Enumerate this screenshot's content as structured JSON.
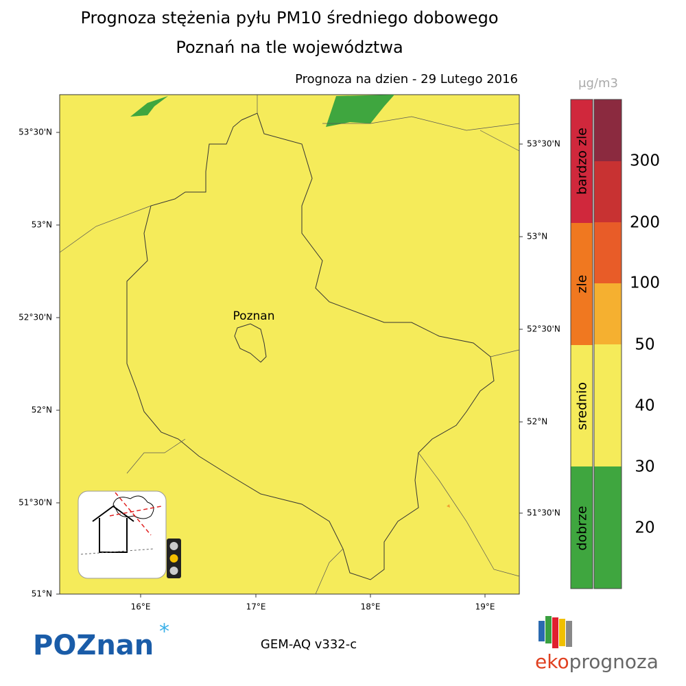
{
  "header": {
    "title": "Prognoza stężenia pyłu PM10 średniego dobowego",
    "subtitle": "Poznań na tle województwa",
    "date_label": "Prognoza na dzien -  29 Lutego 2016"
  },
  "map": {
    "left_lat_labels": [
      "53°30'N",
      "53°N",
      "52°30'N",
      "52°N",
      "51°30'N",
      "51°N"
    ],
    "right_lat_labels": [
      "53°30'N",
      "53°N",
      "52°30'N",
      "52°N",
      "51°30'N"
    ],
    "lon_labels": [
      "16°E",
      "17°E",
      "18°E",
      "19°E"
    ],
    "city_label": "Poznan"
  },
  "legend": {
    "unit": "μg/m3",
    "categories": [
      "bardzo zle",
      "zle",
      "srednio",
      "dobrze"
    ],
    "levels": [
      300,
      200,
      100,
      50,
      40,
      30,
      20
    ]
  },
  "footer": {
    "logo_left": "POZnan",
    "model": "GEM-AQ v332-c",
    "logo_right_a": "eko",
    "logo_right_b": "prognoza"
  }
}
